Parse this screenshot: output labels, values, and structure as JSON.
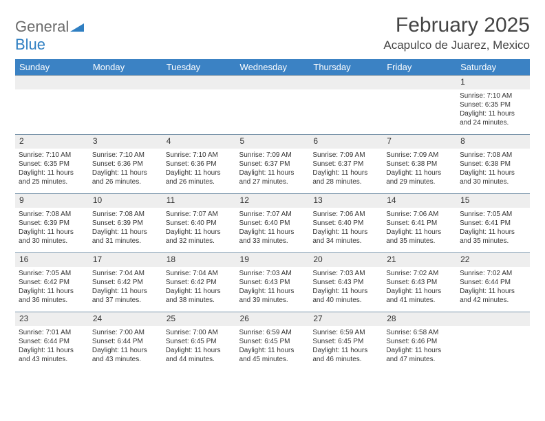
{
  "logo": {
    "part1": "General",
    "part2": "Blue"
  },
  "title": "February 2025",
  "location": "Acapulco de Juarez, Mexico",
  "colors": {
    "header_bg": "#3b82c4",
    "header_text": "#ffffff",
    "grid_line": "#7a94aa",
    "daynum_bg": "#eeeeee",
    "text": "#333333",
    "logo_gray": "#6b6b6b",
    "logo_blue": "#2f7fc2"
  },
  "day_headers": [
    "Sunday",
    "Monday",
    "Tuesday",
    "Wednesday",
    "Thursday",
    "Friday",
    "Saturday"
  ],
  "weeks": [
    [
      null,
      null,
      null,
      null,
      null,
      null,
      {
        "n": "1",
        "sunrise": "7:10 AM",
        "sunset": "6:35 PM",
        "dl": "11 hours and 24 minutes."
      }
    ],
    [
      {
        "n": "2",
        "sunrise": "7:10 AM",
        "sunset": "6:35 PM",
        "dl": "11 hours and 25 minutes."
      },
      {
        "n": "3",
        "sunrise": "7:10 AM",
        "sunset": "6:36 PM",
        "dl": "11 hours and 26 minutes."
      },
      {
        "n": "4",
        "sunrise": "7:10 AM",
        "sunset": "6:36 PM",
        "dl": "11 hours and 26 minutes."
      },
      {
        "n": "5",
        "sunrise": "7:09 AM",
        "sunset": "6:37 PM",
        "dl": "11 hours and 27 minutes."
      },
      {
        "n": "6",
        "sunrise": "7:09 AM",
        "sunset": "6:37 PM",
        "dl": "11 hours and 28 minutes."
      },
      {
        "n": "7",
        "sunrise": "7:09 AM",
        "sunset": "6:38 PM",
        "dl": "11 hours and 29 minutes."
      },
      {
        "n": "8",
        "sunrise": "7:08 AM",
        "sunset": "6:38 PM",
        "dl": "11 hours and 30 minutes."
      }
    ],
    [
      {
        "n": "9",
        "sunrise": "7:08 AM",
        "sunset": "6:39 PM",
        "dl": "11 hours and 30 minutes."
      },
      {
        "n": "10",
        "sunrise": "7:08 AM",
        "sunset": "6:39 PM",
        "dl": "11 hours and 31 minutes."
      },
      {
        "n": "11",
        "sunrise": "7:07 AM",
        "sunset": "6:40 PM",
        "dl": "11 hours and 32 minutes."
      },
      {
        "n": "12",
        "sunrise": "7:07 AM",
        "sunset": "6:40 PM",
        "dl": "11 hours and 33 minutes."
      },
      {
        "n": "13",
        "sunrise": "7:06 AM",
        "sunset": "6:40 PM",
        "dl": "11 hours and 34 minutes."
      },
      {
        "n": "14",
        "sunrise": "7:06 AM",
        "sunset": "6:41 PM",
        "dl": "11 hours and 35 minutes."
      },
      {
        "n": "15",
        "sunrise": "7:05 AM",
        "sunset": "6:41 PM",
        "dl": "11 hours and 35 minutes."
      }
    ],
    [
      {
        "n": "16",
        "sunrise": "7:05 AM",
        "sunset": "6:42 PM",
        "dl": "11 hours and 36 minutes."
      },
      {
        "n": "17",
        "sunrise": "7:04 AM",
        "sunset": "6:42 PM",
        "dl": "11 hours and 37 minutes."
      },
      {
        "n": "18",
        "sunrise": "7:04 AM",
        "sunset": "6:42 PM",
        "dl": "11 hours and 38 minutes."
      },
      {
        "n": "19",
        "sunrise": "7:03 AM",
        "sunset": "6:43 PM",
        "dl": "11 hours and 39 minutes."
      },
      {
        "n": "20",
        "sunrise": "7:03 AM",
        "sunset": "6:43 PM",
        "dl": "11 hours and 40 minutes."
      },
      {
        "n": "21",
        "sunrise": "7:02 AM",
        "sunset": "6:43 PM",
        "dl": "11 hours and 41 minutes."
      },
      {
        "n": "22",
        "sunrise": "7:02 AM",
        "sunset": "6:44 PM",
        "dl": "11 hours and 42 minutes."
      }
    ],
    [
      {
        "n": "23",
        "sunrise": "7:01 AM",
        "sunset": "6:44 PM",
        "dl": "11 hours and 43 minutes."
      },
      {
        "n": "24",
        "sunrise": "7:00 AM",
        "sunset": "6:44 PM",
        "dl": "11 hours and 43 minutes."
      },
      {
        "n": "25",
        "sunrise": "7:00 AM",
        "sunset": "6:45 PM",
        "dl": "11 hours and 44 minutes."
      },
      {
        "n": "26",
        "sunrise": "6:59 AM",
        "sunset": "6:45 PM",
        "dl": "11 hours and 45 minutes."
      },
      {
        "n": "27",
        "sunrise": "6:59 AM",
        "sunset": "6:45 PM",
        "dl": "11 hours and 46 minutes."
      },
      {
        "n": "28",
        "sunrise": "6:58 AM",
        "sunset": "6:46 PM",
        "dl": "11 hours and 47 minutes."
      },
      null
    ]
  ],
  "labels": {
    "sunrise": "Sunrise: ",
    "sunset": "Sunset: ",
    "daylight": "Daylight: "
  }
}
